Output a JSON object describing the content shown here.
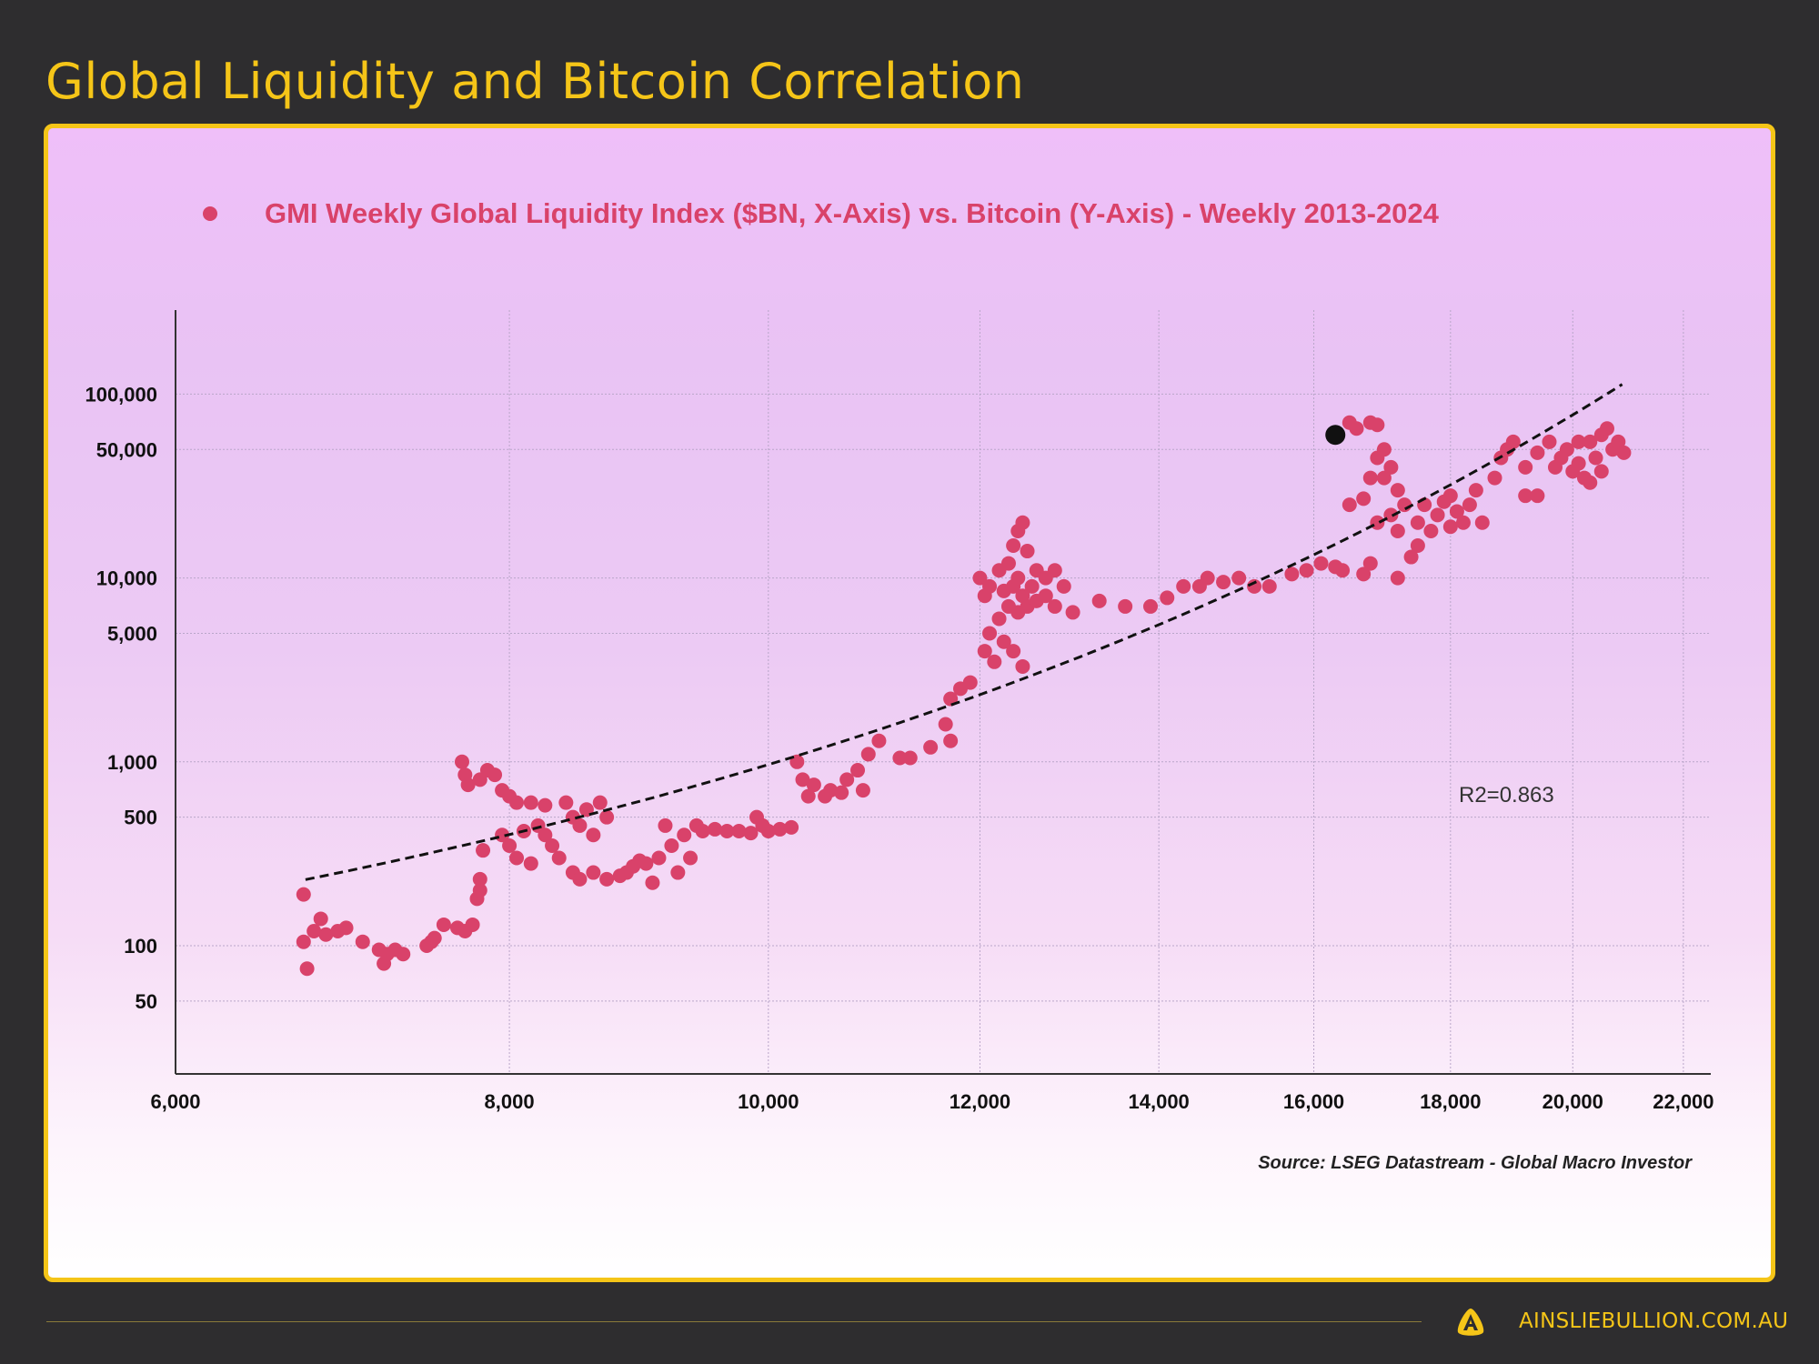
{
  "header": {
    "title": "Global Liquidity and Bitcoin Correlation"
  },
  "footer": {
    "site": "AINSLIEBULLION.COM.AU",
    "logo_letter": "A",
    "logo_icon": "ainslie-logo",
    "brand_color": "#f5c518"
  },
  "chart_data": {
    "type": "scatter",
    "legend": {
      "label": "GMI Weekly Global Liquidity Index ($BN, X-Axis) vs. Bitcoin (Y-Axis) - Weekly 2013-2024",
      "placement": "top"
    },
    "x_scale": "log",
    "y_scale": "log",
    "xlim": [
      6000,
      22000
    ],
    "ylim": [
      20,
      300000
    ],
    "x_ticks": [
      6000,
      8000,
      10000,
      12000,
      14000,
      16000,
      18000,
      20000,
      22000
    ],
    "x_tick_labels": [
      "6,000",
      "8,000",
      "10,000",
      "12,000",
      "14,000",
      "16,000",
      "18,000",
      "20,000",
      "22,000"
    ],
    "y_ticks": [
      50,
      100,
      500,
      1000,
      5000,
      10000,
      50000,
      100000
    ],
    "y_tick_labels": [
      "50",
      "100",
      "500",
      "1,000",
      "5,000",
      "10,000",
      "50,000",
      "100,000"
    ],
    "grid": true,
    "colors": {
      "points": "#d9426a",
      "legend_text": "#d9426a",
      "highlight": "#111111",
      "trendline": "#111111"
    },
    "annotation": "R2=0.863",
    "source": "Source: LSEG Datastream - Global Macro Investor",
    "trendline": {
      "type": "exponential",
      "a": 12.1,
      "b": 0.000438,
      "x_range": [
        6711,
        20870
      ],
      "style": "dashed"
    },
    "highlight_point": [
      16300,
      60000
    ],
    "points": [
      [
        6700,
        190
      ],
      [
        6700,
        105
      ],
      [
        6720,
        75
      ],
      [
        6760,
        120
      ],
      [
        6800,
        140
      ],
      [
        6830,
        115
      ],
      [
        6900,
        120
      ],
      [
        6950,
        125
      ],
      [
        7050,
        105
      ],
      [
        7150,
        95
      ],
      [
        7180,
        80
      ],
      [
        7200,
        90
      ],
      [
        7250,
        95
      ],
      [
        7300,
        90
      ],
      [
        7450,
        100
      ],
      [
        7480,
        105
      ],
      [
        7500,
        110
      ],
      [
        7560,
        130
      ],
      [
        7650,
        125
      ],
      [
        7700,
        120
      ],
      [
        7750,
        130
      ],
      [
        7780,
        180
      ],
      [
        7800,
        200
      ],
      [
        7800,
        230
      ],
      [
        7820,
        330
      ],
      [
        7680,
        1000
      ],
      [
        7700,
        850
      ],
      [
        7720,
        750
      ],
      [
        7800,
        800
      ],
      [
        7850,
        900
      ],
      [
        7900,
        850
      ],
      [
        7950,
        700
      ],
      [
        8000,
        650
      ],
      [
        8050,
        600
      ],
      [
        8150,
        600
      ],
      [
        8250,
        580
      ],
      [
        7950,
        400
      ],
      [
        8000,
        350
      ],
      [
        8050,
        300
      ],
      [
        8100,
        420
      ],
      [
        8150,
        280
      ],
      [
        8200,
        450
      ],
      [
        8250,
        400
      ],
      [
        8300,
        350
      ],
      [
        8350,
        300
      ],
      [
        8400,
        600
      ],
      [
        8450,
        500
      ],
      [
        8450,
        250
      ],
      [
        8500,
        450
      ],
      [
        8500,
        230
      ],
      [
        8550,
        550
      ],
      [
        8600,
        400
      ],
      [
        8600,
        250
      ],
      [
        8650,
        600
      ],
      [
        8700,
        500
      ],
      [
        8700,
        230
      ],
      [
        8800,
        240
      ],
      [
        8850,
        250
      ],
      [
        8900,
        270
      ],
      [
        8950,
        290
      ],
      [
        9000,
        280
      ],
      [
        9050,
        220
      ],
      [
        9100,
        300
      ],
      [
        9150,
        450
      ],
      [
        9200,
        350
      ],
      [
        9250,
        250
      ],
      [
        9300,
        400
      ],
      [
        9350,
        300
      ],
      [
        9400,
        450
      ],
      [
        9450,
        420
      ],
      [
        9550,
        430
      ],
      [
        9650,
        420
      ],
      [
        9750,
        420
      ],
      [
        9850,
        410
      ],
      [
        9900,
        500
      ],
      [
        9950,
        450
      ],
      [
        10000,
        420
      ],
      [
        10100,
        430
      ],
      [
        10200,
        440
      ],
      [
        10250,
        1000
      ],
      [
        10300,
        800
      ],
      [
        10350,
        650
      ],
      [
        10400,
        750
      ],
      [
        10500,
        650
      ],
      [
        10550,
        700
      ],
      [
        10650,
        680
      ],
      [
        10700,
        800
      ],
      [
        10800,
        900
      ],
      [
        10850,
        700
      ],
      [
        10900,
        1100
      ],
      [
        11000,
        1300
      ],
      [
        11200,
        1050
      ],
      [
        11300,
        1050
      ],
      [
        11500,
        1200
      ],
      [
        11700,
        1300
      ],
      [
        11650,
        1600
      ],
      [
        11700,
        2200
      ],
      [
        11800,
        2500
      ],
      [
        11900,
        2700
      ],
      [
        12000,
        10000
      ],
      [
        12050,
        8000
      ],
      [
        12050,
        4000
      ],
      [
        12100,
        9000
      ],
      [
        12100,
        5000
      ],
      [
        12150,
        3500
      ],
      [
        12200,
        11000
      ],
      [
        12200,
        6000
      ],
      [
        12250,
        8500
      ],
      [
        12250,
        4500
      ],
      [
        12300,
        12000
      ],
      [
        12300,
        7000
      ],
      [
        12350,
        15000
      ],
      [
        12350,
        9000
      ],
      [
        12350,
        4000
      ],
      [
        12400,
        18000
      ],
      [
        12400,
        10000
      ],
      [
        12400,
        6500
      ],
      [
        12450,
        20000
      ],
      [
        12450,
        8000
      ],
      [
        12450,
        3300
      ],
      [
        12500,
        14000
      ],
      [
        12500,
        7000
      ],
      [
        12550,
        9000
      ],
      [
        12600,
        11000
      ],
      [
        12600,
        7500
      ],
      [
        12700,
        10000
      ],
      [
        12700,
        8000
      ],
      [
        12800,
        11000
      ],
      [
        12800,
        7000
      ],
      [
        12900,
        9000
      ],
      [
        13000,
        6500
      ],
      [
        13300,
        7500
      ],
      [
        13600,
        7000
      ],
      [
        13900,
        7000
      ],
      [
        14100,
        7800
      ],
      [
        14300,
        9000
      ],
      [
        14500,
        9000
      ],
      [
        14600,
        10000
      ],
      [
        14800,
        9500
      ],
      [
        15000,
        10000
      ],
      [
        15200,
        9000
      ],
      [
        15400,
        9000
      ],
      [
        15700,
        10500
      ],
      [
        15900,
        11000
      ],
      [
        16100,
        12000
      ],
      [
        16300,
        11500
      ],
      [
        16400,
        11000
      ],
      [
        16700,
        10500
      ],
      [
        16800,
        12000
      ],
      [
        16500,
        70000
      ],
      [
        16600,
        65000
      ],
      [
        16800,
        70000
      ],
      [
        16900,
        68000
      ],
      [
        16900,
        45000
      ],
      [
        17000,
        50000
      ],
      [
        17000,
        35000
      ],
      [
        17100,
        40000
      ],
      [
        17200,
        30000
      ],
      [
        17300,
        25000
      ],
      [
        16500,
        25000
      ],
      [
        16700,
        27000
      ],
      [
        16800,
        35000
      ],
      [
        16900,
        20000
      ],
      [
        17100,
        22000
      ],
      [
        17200,
        18000
      ],
      [
        17500,
        20000
      ],
      [
        17600,
        25000
      ],
      [
        17700,
        18000
      ],
      [
        17800,
        22000
      ],
      [
        17900,
        26000
      ],
      [
        18000,
        19000
      ],
      [
        18000,
        28000
      ],
      [
        18100,
        23000
      ],
      [
        18200,
        20000
      ],
      [
        18300,
        25000
      ],
      [
        18400,
        30000
      ],
      [
        18500,
        20000
      ],
      [
        18700,
        35000
      ],
      [
        18800,
        45000
      ],
      [
        18900,
        50000
      ],
      [
        19000,
        55000
      ],
      [
        19200,
        40000
      ],
      [
        19200,
        28000
      ],
      [
        19400,
        28000
      ],
      [
        17400,
        13000
      ],
      [
        17200,
        10000
      ],
      [
        17500,
        15000
      ],
      [
        19600,
        55000
      ],
      [
        19700,
        40000
      ],
      [
        19800,
        45000
      ],
      [
        19900,
        50000
      ],
      [
        20000,
        38000
      ],
      [
        20100,
        42000
      ],
      [
        20200,
        35000
      ],
      [
        20300,
        55000
      ],
      [
        20400,
        45000
      ],
      [
        20500,
        60000
      ],
      [
        20500,
        38000
      ],
      [
        20600,
        65000
      ],
      [
        20700,
        50000
      ],
      [
        20800,
        55000
      ],
      [
        20900,
        48000
      ],
      [
        20300,
        33000
      ],
      [
        20100,
        55000
      ],
      [
        19400,
        48000
      ]
    ]
  }
}
